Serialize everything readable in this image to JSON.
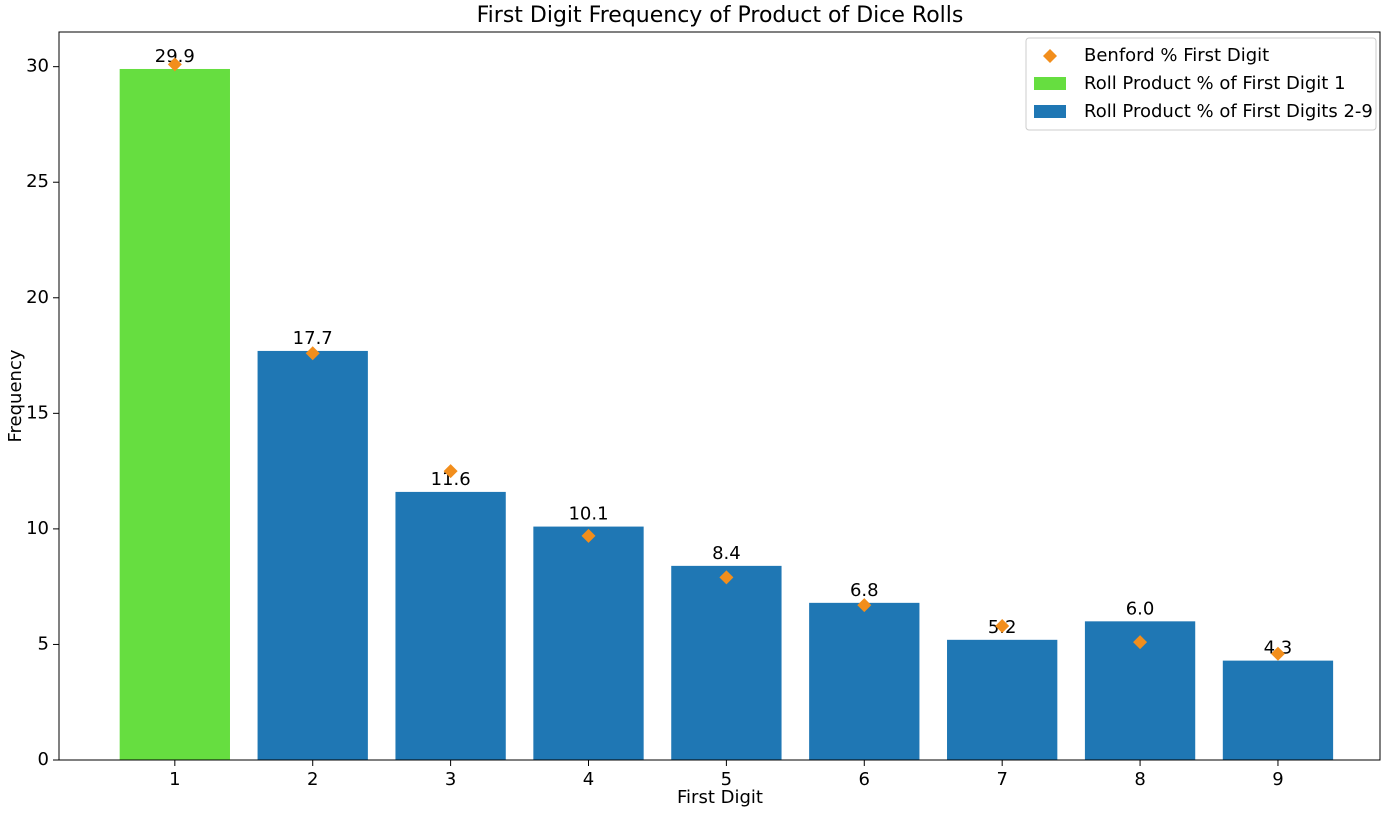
{
  "chart_data": {
    "type": "bar",
    "title": "First Digit Frequency of Product of Dice Rolls",
    "xlabel": "First Digit",
    "ylabel": "Frequency",
    "x": [
      1,
      2,
      3,
      4,
      5,
      6,
      7,
      8,
      9
    ],
    "xlim": [
      0.16,
      9.74
    ],
    "xticks": [
      1,
      2,
      3,
      4,
      5,
      6,
      7,
      8,
      9
    ],
    "ylim": [
      0,
      31.5
    ],
    "yticks": [
      0,
      5,
      10,
      15,
      20,
      25,
      30
    ],
    "bar_width": 0.8,
    "legend": "upper right",
    "series": [
      {
        "name": "Benford % First Digit",
        "type": "scatter",
        "color": "#f28e1c",
        "values": [
          30.1,
          17.6,
          12.5,
          9.7,
          7.9,
          6.7,
          5.8,
          5.1,
          4.6
        ]
      },
      {
        "name": "Roll Product % of First Digit 1",
        "type": "bar",
        "color": "#66de40",
        "values": [
          29.9,
          null,
          null,
          null,
          null,
          null,
          null,
          null,
          null
        ],
        "value_labels": [
          "29.9",
          null,
          null,
          null,
          null,
          null,
          null,
          null,
          null
        ]
      },
      {
        "name": "Roll Product % of First Digits 2-9",
        "type": "bar",
        "color": "#1f77b4",
        "values": [
          null,
          17.7,
          11.6,
          10.1,
          8.4,
          6.8,
          5.2,
          6.0,
          4.3
        ],
        "value_labels": [
          null,
          "17.7",
          "11.6",
          "10.1",
          "8.4",
          "6.8",
          "5.2",
          "6.0",
          "4.3"
        ]
      }
    ]
  }
}
